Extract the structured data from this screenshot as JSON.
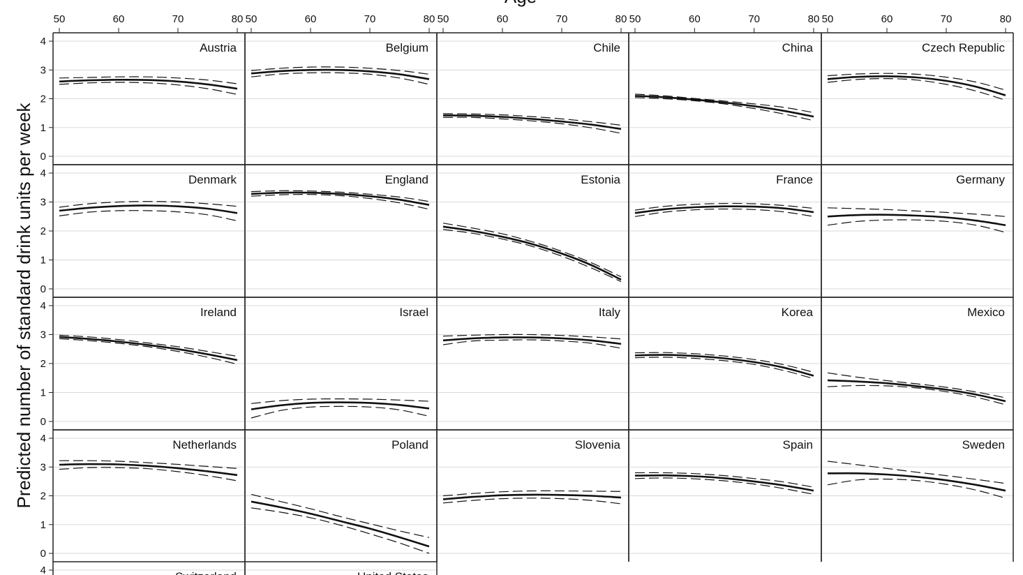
{
  "chart_data": {
    "type": "line",
    "title": "",
    "xlabel": "Age",
    "ylabel": "Predicted number of standard drink units per week",
    "xlim": [
      50,
      80
    ],
    "ylim": [
      0,
      4
    ],
    "x_ticks": [
      "50",
      "60",
      "70",
      "80"
    ],
    "y_ticks": [
      "0",
      "1",
      "2",
      "3",
      "4"
    ],
    "x": [
      50,
      55,
      60,
      65,
      70,
      75,
      80
    ],
    "series_styles": {
      "estimate": "solid",
      "confidence_bounds": "dashed"
    },
    "panels": [
      {
        "name": "Austria",
        "estimate": [
          2.6,
          2.64,
          2.66,
          2.65,
          2.6,
          2.5,
          2.35
        ],
        "lower": [
          2.5,
          2.55,
          2.57,
          2.55,
          2.48,
          2.35,
          2.15
        ],
        "upper": [
          2.72,
          2.74,
          2.76,
          2.76,
          2.72,
          2.65,
          2.52
        ]
      },
      {
        "name": "Belgium",
        "estimate": [
          2.88,
          2.96,
          3.0,
          3.0,
          2.95,
          2.85,
          2.68
        ],
        "lower": [
          2.76,
          2.86,
          2.9,
          2.9,
          2.85,
          2.72,
          2.5
        ],
        "upper": [
          2.98,
          3.06,
          3.1,
          3.1,
          3.06,
          2.98,
          2.85
        ]
      },
      {
        "name": "Chile",
        "estimate": [
          1.42,
          1.41,
          1.37,
          1.3,
          1.21,
          1.1,
          0.95
        ],
        "lower": [
          1.35,
          1.35,
          1.3,
          1.23,
          1.13,
          0.99,
          0.8
        ],
        "upper": [
          1.48,
          1.47,
          1.44,
          1.38,
          1.3,
          1.2,
          1.08
        ]
      },
      {
        "name": "China",
        "estimate": [
          2.1,
          2.05,
          1.97,
          1.87,
          1.74,
          1.58,
          1.38
        ],
        "lower": [
          2.04,
          2.0,
          1.93,
          1.82,
          1.66,
          1.47,
          1.24
        ],
        "upper": [
          2.16,
          2.1,
          2.01,
          1.92,
          1.82,
          1.7,
          1.52
        ]
      },
      {
        "name": "Czech Republic",
        "estimate": [
          2.68,
          2.76,
          2.78,
          2.74,
          2.62,
          2.42,
          2.12
        ],
        "lower": [
          2.57,
          2.67,
          2.7,
          2.65,
          2.5,
          2.27,
          1.95
        ],
        "upper": [
          2.8,
          2.86,
          2.88,
          2.85,
          2.75,
          2.58,
          2.3
        ]
      },
      {
        "name": "Denmark",
        "estimate": [
          2.7,
          2.8,
          2.86,
          2.88,
          2.85,
          2.77,
          2.62
        ],
        "lower": [
          2.52,
          2.65,
          2.7,
          2.7,
          2.66,
          2.56,
          2.35
        ],
        "upper": [
          2.82,
          2.94,
          3.0,
          3.02,
          3.0,
          2.94,
          2.85
        ]
      },
      {
        "name": "England",
        "estimate": [
          3.28,
          3.32,
          3.32,
          3.28,
          3.2,
          3.08,
          2.9
        ],
        "lower": [
          3.2,
          3.25,
          3.26,
          3.22,
          3.12,
          2.97,
          2.75
        ],
        "upper": [
          3.36,
          3.39,
          3.38,
          3.34,
          3.27,
          3.17,
          3.02
        ]
      },
      {
        "name": "Estonia",
        "estimate": [
          2.15,
          2.0,
          1.8,
          1.55,
          1.22,
          0.82,
          0.32
        ],
        "lower": [
          2.05,
          1.92,
          1.72,
          1.47,
          1.13,
          0.72,
          0.25
        ],
        "upper": [
          2.27,
          2.1,
          1.9,
          1.63,
          1.3,
          0.9,
          0.42
        ]
      },
      {
        "name": "France",
        "estimate": [
          2.62,
          2.75,
          2.82,
          2.85,
          2.84,
          2.78,
          2.65
        ],
        "lower": [
          2.5,
          2.65,
          2.73,
          2.76,
          2.74,
          2.66,
          2.5
        ],
        "upper": [
          2.72,
          2.85,
          2.92,
          2.95,
          2.94,
          2.88,
          2.78
        ]
      },
      {
        "name": "Germany",
        "estimate": [
          2.5,
          2.55,
          2.56,
          2.53,
          2.47,
          2.36,
          2.2
        ],
        "lower": [
          2.2,
          2.33,
          2.38,
          2.38,
          2.33,
          2.2,
          1.95
        ],
        "upper": [
          2.8,
          2.77,
          2.74,
          2.69,
          2.64,
          2.58,
          2.5
        ]
      },
      {
        "name": "Ireland",
        "estimate": [
          2.92,
          2.85,
          2.76,
          2.64,
          2.5,
          2.32,
          2.12
        ],
        "lower": [
          2.86,
          2.79,
          2.7,
          2.58,
          2.42,
          2.22,
          1.98
        ],
        "upper": [
          2.98,
          2.92,
          2.83,
          2.71,
          2.58,
          2.42,
          2.25
        ]
      },
      {
        "name": "Israel",
        "estimate": [
          0.42,
          0.56,
          0.64,
          0.66,
          0.64,
          0.57,
          0.45
        ],
        "lower": [
          0.12,
          0.38,
          0.5,
          0.52,
          0.5,
          0.4,
          0.18
        ],
        "upper": [
          0.62,
          0.72,
          0.77,
          0.78,
          0.77,
          0.74,
          0.7
        ]
      },
      {
        "name": "Italy",
        "estimate": [
          2.8,
          2.87,
          2.9,
          2.9,
          2.87,
          2.8,
          2.68
        ],
        "lower": [
          2.65,
          2.78,
          2.81,
          2.82,
          2.78,
          2.7,
          2.53
        ],
        "upper": [
          2.95,
          2.98,
          3.0,
          3.0,
          2.97,
          2.92,
          2.85
        ]
      },
      {
        "name": "Korea",
        "estimate": [
          2.28,
          2.3,
          2.26,
          2.18,
          2.05,
          1.86,
          1.58
        ],
        "lower": [
          2.2,
          2.22,
          2.18,
          2.1,
          1.97,
          1.76,
          1.48
        ],
        "upper": [
          2.37,
          2.38,
          2.34,
          2.26,
          2.14,
          1.96,
          1.7
        ]
      },
      {
        "name": "Mexico",
        "estimate": [
          1.42,
          1.38,
          1.32,
          1.22,
          1.1,
          0.93,
          0.7
        ],
        "lower": [
          1.2,
          1.24,
          1.23,
          1.16,
          1.03,
          0.84,
          0.58
        ],
        "upper": [
          1.68,
          1.53,
          1.41,
          1.3,
          1.18,
          1.02,
          0.82
        ]
      },
      {
        "name": "Netherlands",
        "estimate": [
          3.08,
          3.1,
          3.09,
          3.04,
          2.96,
          2.85,
          2.72
        ],
        "lower": [
          2.92,
          2.98,
          2.98,
          2.94,
          2.84,
          2.7,
          2.52
        ],
        "upper": [
          3.22,
          3.22,
          3.2,
          3.15,
          3.09,
          3.02,
          2.95
        ]
      },
      {
        "name": "Poland",
        "estimate": [
          1.8,
          1.6,
          1.38,
          1.12,
          0.86,
          0.56,
          0.24
        ],
        "lower": [
          1.58,
          1.43,
          1.24,
          0.98,
          0.68,
          0.36,
          0.0
        ],
        "upper": [
          2.05,
          1.8,
          1.55,
          1.28,
          1.03,
          0.78,
          0.55
        ]
      },
      {
        "name": "Slovenia",
        "estimate": [
          1.88,
          1.96,
          2.02,
          2.04,
          2.03,
          2.0,
          1.94
        ],
        "lower": [
          1.75,
          1.84,
          1.9,
          1.92,
          1.9,
          1.84,
          1.72
        ],
        "upper": [
          2.0,
          2.08,
          2.14,
          2.17,
          2.17,
          2.16,
          2.15
        ]
      },
      {
        "name": "Spain",
        "estimate": [
          2.7,
          2.71,
          2.68,
          2.61,
          2.5,
          2.36,
          2.18
        ],
        "lower": [
          2.6,
          2.62,
          2.59,
          2.52,
          2.41,
          2.25,
          2.05
        ],
        "upper": [
          2.8,
          2.8,
          2.77,
          2.7,
          2.6,
          2.48,
          2.3
        ]
      },
      {
        "name": "Sweden",
        "estimate": [
          2.78,
          2.78,
          2.74,
          2.66,
          2.54,
          2.38,
          2.18
        ],
        "lower": [
          2.38,
          2.55,
          2.58,
          2.53,
          2.4,
          2.2,
          1.92
        ],
        "upper": [
          3.2,
          3.08,
          2.95,
          2.82,
          2.7,
          2.57,
          2.43
        ]
      },
      {
        "name": "Switzerland",
        "estimate": [],
        "lower": [],
        "upper": []
      },
      {
        "name": "United States",
        "estimate": [],
        "lower": [],
        "upper": []
      }
    ]
  }
}
